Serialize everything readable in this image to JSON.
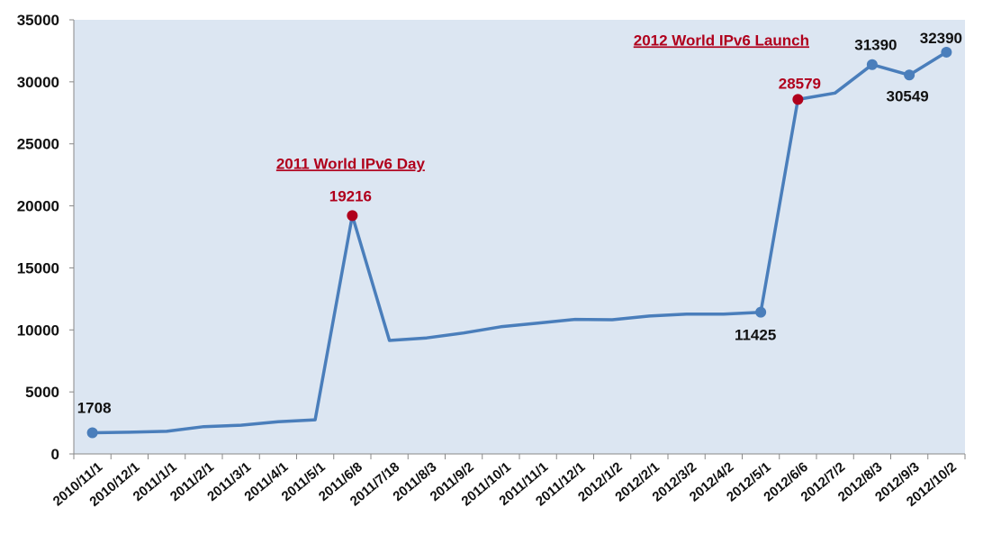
{
  "chart_data": {
    "type": "line",
    "title": "",
    "xlabel": "",
    "ylabel": "",
    "ylim": [
      0,
      35000
    ],
    "yticks": [
      0,
      5000,
      10000,
      15000,
      20000,
      25000,
      30000,
      35000
    ],
    "grid": false,
    "legend": "none",
    "colors": {
      "line": "#4a7ebb",
      "plot_bg": "#dce6f2",
      "highlight": "#b0001c",
      "marker": "#4a7ebb"
    },
    "categories": [
      "2010/11/1",
      "2010/12/1",
      "2011/1/1",
      "2011/2/1",
      "2011/3/1",
      "2011/4/1",
      "2011/5/1",
      "2011/6/8",
      "2011/7/18",
      "2011/8/3",
      "2011/9/2",
      "2011/10/1",
      "2011/11/1",
      "2011/12/1",
      "2012/1/2",
      "2012/2/1",
      "2012/3/2",
      "2012/4/2",
      "2012/5/1",
      "2012/6/6",
      "2012/7/2",
      "2012/8/3",
      "2012/9/3",
      "2012/10/2"
    ],
    "series": [
      {
        "values": [
          1708,
          1750,
          1820,
          2200,
          2320,
          2600,
          2750,
          19216,
          9150,
          9350,
          9750,
          10250,
          10550,
          10850,
          10820,
          11120,
          11270,
          11280,
          11425,
          28579,
          29100,
          31390,
          30549,
          32390
        ]
      }
    ],
    "data_labels": [
      {
        "index": 0,
        "text": "1708",
        "style": "black"
      },
      {
        "index": 7,
        "text": "19216",
        "style": "red"
      },
      {
        "index": 18,
        "text": "11425",
        "style": "black"
      },
      {
        "index": 19,
        "text": "28579",
        "style": "red"
      },
      {
        "index": 21,
        "text": "31390",
        "style": "black"
      },
      {
        "index": 22,
        "text": "30549",
        "style": "black"
      },
      {
        "index": 23,
        "text": "32390",
        "style": "black"
      }
    ],
    "annotations": [
      {
        "text": "2011 World IPv6 Day",
        "index": 7
      },
      {
        "text": "2012 World IPv6 Launch",
        "index": 19
      }
    ]
  }
}
